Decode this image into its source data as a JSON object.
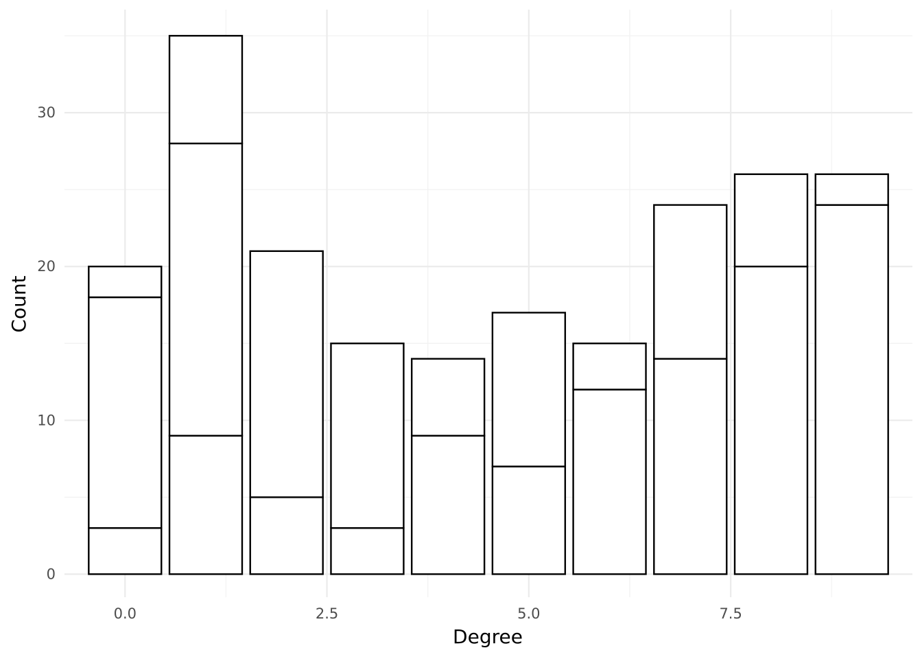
{
  "chart_data": {
    "type": "bar",
    "stacked": true,
    "title": "",
    "xlabel": "Degree",
    "ylabel": "Count",
    "x": [
      0,
      1,
      2,
      3,
      4,
      5,
      6,
      7,
      8,
      9
    ],
    "stack_boundaries": [
      [
        3,
        18,
        20
      ],
      [
        9,
        28,
        35
      ],
      [
        5,
        21
      ],
      [
        3,
        15
      ],
      [
        9,
        14
      ],
      [
        7,
        17
      ],
      [
        12,
        15
      ],
      [
        14,
        24
      ],
      [
        20,
        26
      ],
      [
        24,
        26
      ]
    ],
    "totals": [
      20,
      35,
      21,
      15,
      14,
      17,
      15,
      24,
      26,
      26
    ],
    "xlim": [
      -0.75,
      9.75
    ],
    "ylim": [
      -1.5,
      36.7
    ],
    "x_ticks": [
      0,
      2.5,
      5,
      7.5
    ],
    "x_tick_labels": [
      "0.0",
      "2.5",
      "5.0",
      "7.5"
    ],
    "y_ticks": [
      0,
      10,
      20,
      30
    ],
    "y_tick_labels": [
      "0",
      "10",
      "20",
      "30"
    ],
    "grid": true,
    "legend": "none",
    "colors": {
      "bar_fill": "#ffffff",
      "bar_stroke": "#000000",
      "grid_major": "#ebebeb",
      "grid_minor": "#f2f2f2",
      "tick_text": "#4d4d4d"
    }
  }
}
